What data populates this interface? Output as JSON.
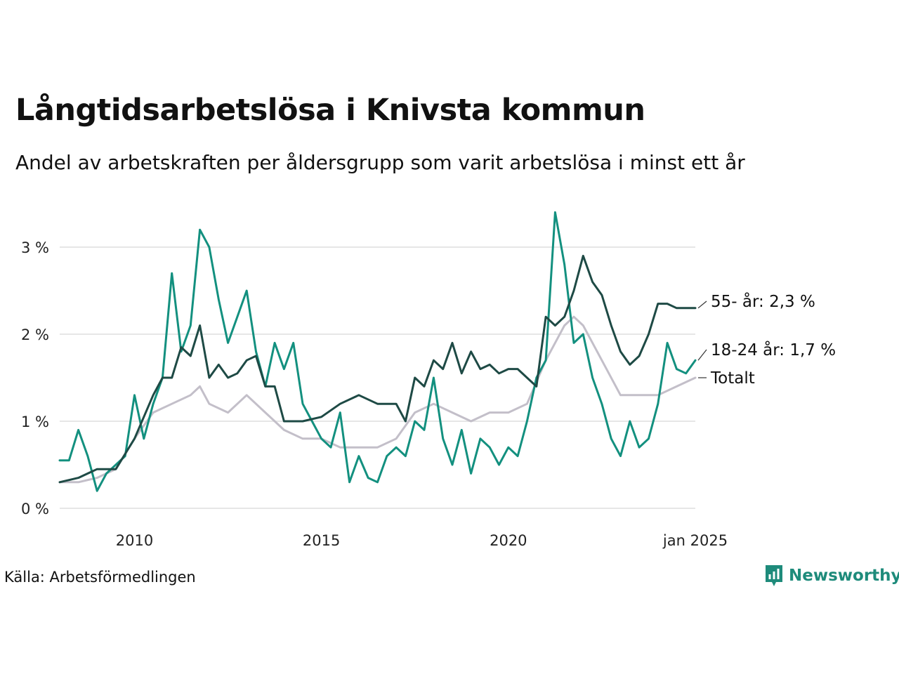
{
  "title": "Långtidsarbetslösa i Knivsta kommun",
  "subtitle": "Andel av arbetskraften per åldersgrupp som varit arbetslösa i minst ett år",
  "source": "Källa: Arbetsförmedlingen",
  "brand": "Newsworthy",
  "colors": {
    "teal_series": "#13907f",
    "dark_series": "#1e4a45",
    "grey_series": "#c3bfc9",
    "grid": "#e6e6e6",
    "brand": "#1e8b7b"
  },
  "chart_data": {
    "type": "line",
    "x_start": "2008-01",
    "x_end": "2025-01",
    "ylim": [
      0,
      3.5
    ],
    "y_ticks": [
      {
        "value": 0,
        "label": "0 %"
      },
      {
        "value": 1,
        "label": "1 %"
      },
      {
        "value": 2,
        "label": "2 %"
      },
      {
        "value": 3,
        "label": "3 %"
      }
    ],
    "x_ticks": [
      {
        "date": "2010-01",
        "label": "2010"
      },
      {
        "date": "2015-01",
        "label": "2015"
      },
      {
        "date": "2020-01",
        "label": "2020"
      },
      {
        "date": "2025-01",
        "label": "jan 2025"
      }
    ],
    "grid": true,
    "series": [
      {
        "name": "Totalt",
        "end_label": "Totalt",
        "color": "#c3bfc9",
        "points": [
          [
            "2008-01",
            0.3
          ],
          [
            "2008-07",
            0.3
          ],
          [
            "2009-01",
            0.35
          ],
          [
            "2009-07",
            0.45
          ],
          [
            "2010-01",
            0.8
          ],
          [
            "2010-07",
            1.1
          ],
          [
            "2011-01",
            1.2
          ],
          [
            "2011-07",
            1.3
          ],
          [
            "2011-10",
            1.4
          ],
          [
            "2012-01",
            1.2
          ],
          [
            "2012-07",
            1.1
          ],
          [
            "2013-01",
            1.3
          ],
          [
            "2013-07",
            1.1
          ],
          [
            "2014-01",
            0.9
          ],
          [
            "2014-07",
            0.8
          ],
          [
            "2015-01",
            0.8
          ],
          [
            "2015-07",
            0.7
          ],
          [
            "2016-01",
            0.7
          ],
          [
            "2016-07",
            0.7
          ],
          [
            "2017-01",
            0.8
          ],
          [
            "2017-07",
            1.1
          ],
          [
            "2018-01",
            1.2
          ],
          [
            "2018-07",
            1.1
          ],
          [
            "2019-01",
            1.0
          ],
          [
            "2019-07",
            1.1
          ],
          [
            "2020-01",
            1.1
          ],
          [
            "2020-07",
            1.2
          ],
          [
            "2021-01",
            1.7
          ],
          [
            "2021-07",
            2.1
          ],
          [
            "2021-10",
            2.2
          ],
          [
            "2022-01",
            2.1
          ],
          [
            "2022-07",
            1.7
          ],
          [
            "2023-01",
            1.3
          ],
          [
            "2023-07",
            1.3
          ],
          [
            "2024-01",
            1.3
          ],
          [
            "2024-07",
            1.4
          ],
          [
            "2025-01",
            1.5
          ]
        ]
      },
      {
        "name": "18-24 år",
        "end_label": "18-24 år: 1,7 %",
        "color": "#13907f",
        "points": [
          [
            "2008-01",
            0.55
          ],
          [
            "2008-04",
            0.55
          ],
          [
            "2008-07",
            0.9
          ],
          [
            "2008-10",
            0.6
          ],
          [
            "2009-01",
            0.2
          ],
          [
            "2009-04",
            0.4
          ],
          [
            "2009-07",
            0.5
          ],
          [
            "2009-10",
            0.6
          ],
          [
            "2010-01",
            1.3
          ],
          [
            "2010-04",
            0.8
          ],
          [
            "2010-07",
            1.2
          ],
          [
            "2010-10",
            1.5
          ],
          [
            "2011-01",
            2.7
          ],
          [
            "2011-04",
            1.8
          ],
          [
            "2011-07",
            2.1
          ],
          [
            "2011-10",
            3.2
          ],
          [
            "2012-01",
            3.0
          ],
          [
            "2012-04",
            2.4
          ],
          [
            "2012-07",
            1.9
          ],
          [
            "2012-10",
            2.2
          ],
          [
            "2013-01",
            2.5
          ],
          [
            "2013-04",
            1.8
          ],
          [
            "2013-07",
            1.4
          ],
          [
            "2013-10",
            1.9
          ],
          [
            "2014-01",
            1.6
          ],
          [
            "2014-04",
            1.9
          ],
          [
            "2014-07",
            1.2
          ],
          [
            "2014-10",
            1.0
          ],
          [
            "2015-01",
            0.8
          ],
          [
            "2015-04",
            0.7
          ],
          [
            "2015-07",
            1.1
          ],
          [
            "2015-10",
            0.3
          ],
          [
            "2016-01",
            0.6
          ],
          [
            "2016-04",
            0.35
          ],
          [
            "2016-07",
            0.3
          ],
          [
            "2016-10",
            0.6
          ],
          [
            "2017-01",
            0.7
          ],
          [
            "2017-04",
            0.6
          ],
          [
            "2017-07",
            1.0
          ],
          [
            "2017-10",
            0.9
          ],
          [
            "2018-01",
            1.5
          ],
          [
            "2018-04",
            0.8
          ],
          [
            "2018-07",
            0.5
          ],
          [
            "2018-10",
            0.9
          ],
          [
            "2019-01",
            0.4
          ],
          [
            "2019-04",
            0.8
          ],
          [
            "2019-07",
            0.7
          ],
          [
            "2019-10",
            0.5
          ],
          [
            "2020-01",
            0.7
          ],
          [
            "2020-04",
            0.6
          ],
          [
            "2020-07",
            1.0
          ],
          [
            "2020-10",
            1.5
          ],
          [
            "2021-01",
            1.7
          ],
          [
            "2021-04",
            3.4
          ],
          [
            "2021-07",
            2.8
          ],
          [
            "2021-10",
            1.9
          ],
          [
            "2022-01",
            2.0
          ],
          [
            "2022-04",
            1.5
          ],
          [
            "2022-07",
            1.2
          ],
          [
            "2022-10",
            0.8
          ],
          [
            "2023-01",
            0.6
          ],
          [
            "2023-04",
            1.0
          ],
          [
            "2023-07",
            0.7
          ],
          [
            "2023-10",
            0.8
          ],
          [
            "2024-01",
            1.2
          ],
          [
            "2024-04",
            1.9
          ],
          [
            "2024-07",
            1.6
          ],
          [
            "2024-10",
            1.55
          ],
          [
            "2025-01",
            1.7
          ]
        ]
      },
      {
        "name": "55- år",
        "end_label": "55- år: 2,3 %",
        "color": "#1e4a45",
        "points": [
          [
            "2008-01",
            0.3
          ],
          [
            "2008-07",
            0.35
          ],
          [
            "2009-01",
            0.45
          ],
          [
            "2009-07",
            0.45
          ],
          [
            "2010-01",
            0.8
          ],
          [
            "2010-07",
            1.3
          ],
          [
            "2010-10",
            1.5
          ],
          [
            "2011-01",
            1.5
          ],
          [
            "2011-04",
            1.85
          ],
          [
            "2011-07",
            1.75
          ],
          [
            "2011-10",
            2.1
          ],
          [
            "2012-01",
            1.5
          ],
          [
            "2012-04",
            1.65
          ],
          [
            "2012-07",
            1.5
          ],
          [
            "2012-10",
            1.55
          ],
          [
            "2013-01",
            1.7
          ],
          [
            "2013-04",
            1.75
          ],
          [
            "2013-07",
            1.4
          ],
          [
            "2013-10",
            1.4
          ],
          [
            "2014-01",
            1.0
          ],
          [
            "2014-07",
            1.0
          ],
          [
            "2015-01",
            1.05
          ],
          [
            "2015-07",
            1.2
          ],
          [
            "2016-01",
            1.3
          ],
          [
            "2016-07",
            1.2
          ],
          [
            "2017-01",
            1.2
          ],
          [
            "2017-04",
            1.0
          ],
          [
            "2017-07",
            1.5
          ],
          [
            "2017-10",
            1.4
          ],
          [
            "2018-01",
            1.7
          ],
          [
            "2018-04",
            1.6
          ],
          [
            "2018-07",
            1.9
          ],
          [
            "2018-10",
            1.55
          ],
          [
            "2019-01",
            1.8
          ],
          [
            "2019-04",
            1.6
          ],
          [
            "2019-07",
            1.65
          ],
          [
            "2019-10",
            1.55
          ],
          [
            "2020-01",
            1.6
          ],
          [
            "2020-04",
            1.6
          ],
          [
            "2020-07",
            1.5
          ],
          [
            "2020-10",
            1.4
          ],
          [
            "2021-01",
            2.2
          ],
          [
            "2021-04",
            2.1
          ],
          [
            "2021-07",
            2.2
          ],
          [
            "2021-10",
            2.5
          ],
          [
            "2022-01",
            2.9
          ],
          [
            "2022-04",
            2.6
          ],
          [
            "2022-07",
            2.45
          ],
          [
            "2022-10",
            2.1
          ],
          [
            "2023-01",
            1.8
          ],
          [
            "2023-04",
            1.65
          ],
          [
            "2023-07",
            1.75
          ],
          [
            "2023-10",
            2.0
          ],
          [
            "2024-01",
            2.35
          ],
          [
            "2024-04",
            2.35
          ],
          [
            "2024-07",
            2.3
          ],
          [
            "2024-10",
            2.3
          ],
          [
            "2025-01",
            2.3
          ]
        ]
      }
    ]
  }
}
